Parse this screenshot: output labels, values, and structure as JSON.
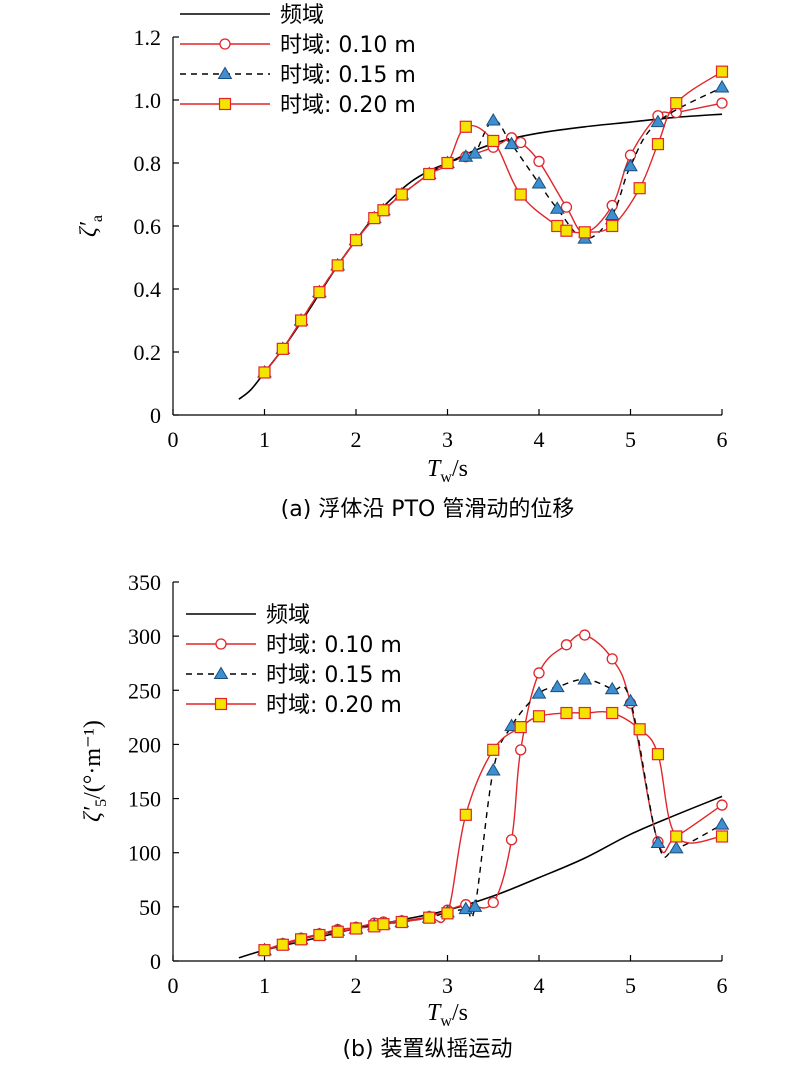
{
  "colors": {
    "freq": "#000000",
    "td": "#e0262b",
    "td_dash": "#000000",
    "triangle_fill": "#3d8fd1",
    "square_fill": "#f5e400",
    "square_stroke": "#e0262b",
    "circle_fill": "#ffffff"
  },
  "chart_data": [
    {
      "id": "a",
      "type": "line",
      "caption": "(a) 浮体沿 PTO 管滑动的位移",
      "xlabel_main": "T",
      "xlabel_sub": "w",
      "xlabel_unit": "/s",
      "ylabel_main": "ζ′",
      "ylabel_sub": "a",
      "ylabel_suffix": "",
      "xlim": [
        0,
        6
      ],
      "ylim": [
        0,
        1.2
      ],
      "xticks": [
        0,
        1,
        2,
        3,
        4,
        5,
        6
      ],
      "yticks": [
        0,
        0.2,
        0.4,
        0.6,
        0.8,
        1.0,
        1.2
      ],
      "ytick_labels": [
        "0",
        "0.2",
        "0.4",
        "0.6",
        "0.8",
        "1.0",
        "1.2"
      ],
      "legend_position": "top-left",
      "series": [
        {
          "name": "频域",
          "marker": "none",
          "style": "solid",
          "x": [
            0.72,
            0.85,
            1.0,
            1.2,
            1.4,
            1.6,
            1.8,
            2.0,
            2.2,
            2.4,
            2.6,
            2.8,
            3.0,
            3.3,
            3.6,
            4.0,
            4.5,
            5.0,
            5.5,
            6.0
          ],
          "y": [
            0.05,
            0.08,
            0.135,
            0.21,
            0.295,
            0.385,
            0.475,
            0.555,
            0.63,
            0.69,
            0.74,
            0.775,
            0.8,
            0.84,
            0.87,
            0.895,
            0.915,
            0.93,
            0.945,
            0.955
          ]
        },
        {
          "name": "时域: 0.10 m",
          "marker": "circle",
          "style": "solid",
          "x": [
            1.0,
            1.2,
            1.4,
            1.6,
            1.8,
            2.0,
            2.2,
            2.3,
            2.5,
            2.8,
            3.0,
            3.2,
            3.5,
            3.7,
            3.8,
            4.0,
            4.3,
            4.5,
            4.8,
            5.0,
            5.3,
            5.5,
            6.0
          ],
          "y": [
            0.135,
            0.21,
            0.3,
            0.39,
            0.475,
            0.555,
            0.625,
            0.65,
            0.7,
            0.765,
            0.8,
            0.82,
            0.85,
            0.88,
            0.865,
            0.805,
            0.66,
            0.58,
            0.665,
            0.825,
            0.95,
            0.96,
            0.99
          ]
        },
        {
          "name": "时域: 0.15 m",
          "marker": "triangle",
          "style": "dashed",
          "x": [
            1.0,
            1.2,
            1.4,
            1.6,
            1.8,
            2.0,
            2.2,
            2.3,
            2.5,
            2.8,
            3.0,
            3.2,
            3.3,
            3.5,
            3.7,
            4.0,
            4.2,
            4.5,
            4.8,
            5.0,
            5.3,
            6.0
          ],
          "y": [
            0.135,
            0.21,
            0.3,
            0.39,
            0.475,
            0.555,
            0.625,
            0.65,
            0.7,
            0.765,
            0.8,
            0.82,
            0.83,
            0.935,
            0.86,
            0.735,
            0.655,
            0.56,
            0.635,
            0.79,
            0.93,
            1.04
          ]
        },
        {
          "name": "时域: 0.20 m",
          "marker": "square",
          "style": "solid",
          "x": [
            1.0,
            1.2,
            1.4,
            1.6,
            1.8,
            2.0,
            2.2,
            2.3,
            2.5,
            2.8,
            3.0,
            3.2,
            3.5,
            3.8,
            4.2,
            4.3,
            4.5,
            4.8,
            5.1,
            5.3,
            5.5,
            6.0
          ],
          "y": [
            0.135,
            0.21,
            0.3,
            0.39,
            0.475,
            0.555,
            0.625,
            0.65,
            0.7,
            0.765,
            0.8,
            0.915,
            0.87,
            0.7,
            0.6,
            0.585,
            0.58,
            0.6,
            0.72,
            0.86,
            0.99,
            1.09
          ]
        }
      ]
    },
    {
      "id": "b",
      "type": "line",
      "caption": "(b) 装置纵摇运动",
      "xlabel_main": "T",
      "xlabel_sub": "w",
      "xlabel_unit": "/s",
      "ylabel_main": "ζ′",
      "ylabel_sub": "5",
      "ylabel_suffix": "/(°·m⁻¹)",
      "xlim": [
        0,
        6
      ],
      "ylim": [
        0,
        350
      ],
      "xticks": [
        0,
        1,
        2,
        3,
        4,
        5,
        6
      ],
      "yticks": [
        0,
        50,
        100,
        150,
        200,
        250,
        300,
        350
      ],
      "ytick_labels": [
        "0",
        "50",
        "100",
        "150",
        "200",
        "250",
        "300",
        "350"
      ],
      "legend_position": "top-left",
      "series": [
        {
          "name": "频域",
          "marker": "none",
          "style": "solid",
          "x": [
            0.72,
            1.0,
            1.5,
            2.0,
            2.5,
            3.0,
            3.5,
            4.0,
            4.5,
            5.0,
            5.5,
            6.0
          ],
          "y": [
            3,
            10,
            20,
            30,
            38,
            47,
            60,
            77,
            95,
            117,
            135,
            152
          ]
        },
        {
          "name": "时域: 0.10 m",
          "marker": "circle",
          "style": "solid",
          "x": [
            1.0,
            1.2,
            1.4,
            1.6,
            1.8,
            2.0,
            2.2,
            2.3,
            2.5,
            2.8,
            3.0,
            3.2,
            3.5,
            3.7,
            3.8,
            4.0,
            4.3,
            4.5,
            4.8,
            5.0,
            5.3,
            5.5,
            6.0
          ],
          "y": [
            10,
            16,
            21,
            25,
            29,
            31,
            35,
            36,
            37,
            41,
            47,
            52,
            54,
            112,
            195,
            266,
            292,
            301,
            279,
            238,
            110,
            115,
            144
          ]
        },
        {
          "name": "时域: 0.15 m",
          "marker": "triangle",
          "style": "dashed",
          "x": [
            1.0,
            1.2,
            1.4,
            1.6,
            1.8,
            2.0,
            2.2,
            2.3,
            2.5,
            2.8,
            3.0,
            3.2,
            3.3,
            3.5,
            3.7,
            4.0,
            4.2,
            4.5,
            4.8,
            5.0,
            5.3,
            5.5,
            6.0
          ],
          "y": [
            10,
            15,
            20,
            24,
            28,
            30,
            33,
            34,
            36,
            40,
            45,
            48,
            50,
            176,
            217,
            247,
            253,
            260,
            251,
            240,
            109,
            104,
            126
          ]
        },
        {
          "name": "时域: 0.20 m",
          "marker": "square",
          "style": "solid",
          "x": [
            1.0,
            1.2,
            1.4,
            1.6,
            1.8,
            2.0,
            2.2,
            2.3,
            2.5,
            2.8,
            3.0,
            3.2,
            3.5,
            3.8,
            4.0,
            4.3,
            4.5,
            4.8,
            5.1,
            5.3,
            5.5,
            6.0
          ],
          "y": [
            10,
            15,
            20,
            24,
            27,
            30,
            32,
            34,
            36,
            40,
            44,
            135,
            195,
            216,
            226,
            229,
            229,
            229,
            214,
            191,
            115,
            115
          ]
        }
      ]
    }
  ]
}
